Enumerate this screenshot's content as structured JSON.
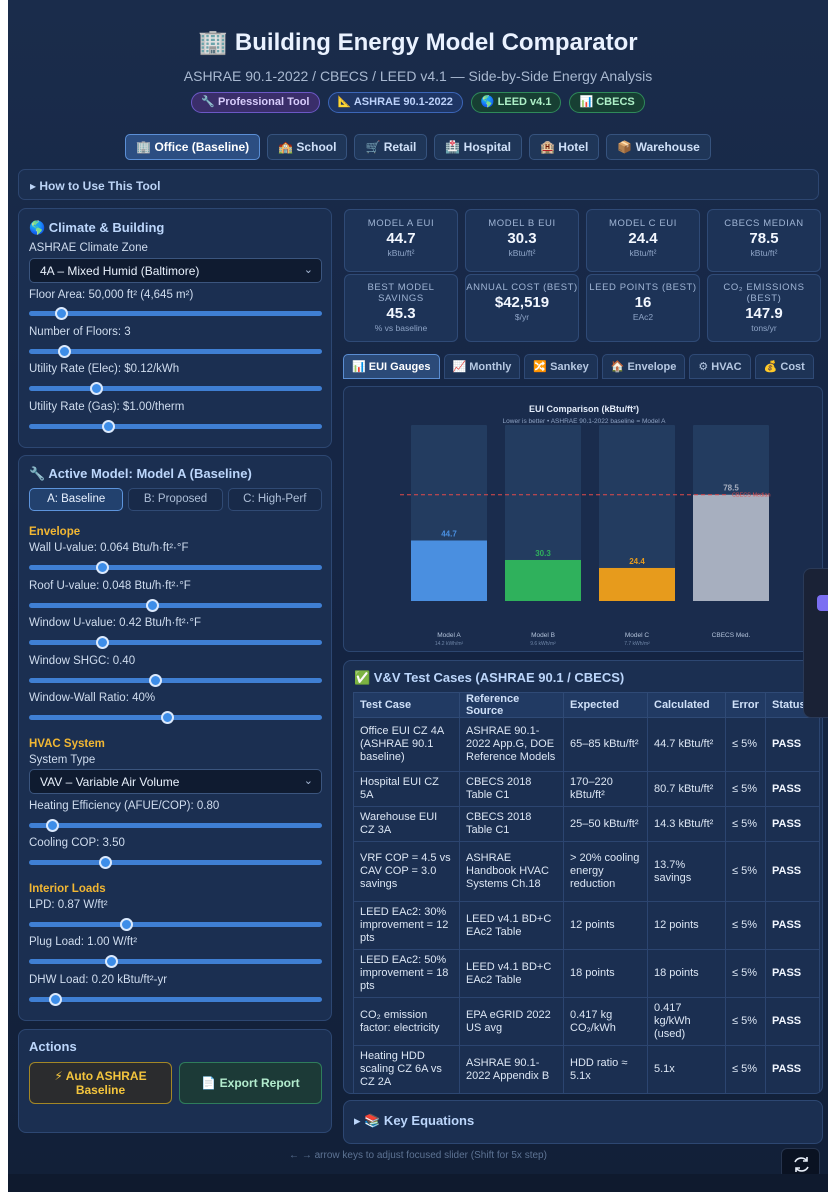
{
  "header": {
    "title": "🏢 Building Energy Model Comparator",
    "subtitle": "ASHRAE 90.1-2022 / CBECS / LEED v4.1 — Side-by-Side Energy Analysis",
    "badges": [
      "🔧 Professional Tool",
      "📐 ASHRAE 90.1-2022",
      "🌎 LEED v4.1",
      "📊 CBECS"
    ]
  },
  "building_tabs": [
    "🏢 Office (Baseline)",
    "🏫 School",
    "🛒 Retail",
    "🏥 Hospital",
    "🏨 Hotel",
    "📦 Warehouse"
  ],
  "howto": "▸ How to Use This Tool",
  "climate": {
    "heading": "🌎 Climate & Building",
    "zone_label": "ASHRAE Climate Zone",
    "zone_value": "4A – Mixed Humid (Baltimore)",
    "floor_area": "Floor Area: 50,000 ft² (4,645 m²)",
    "floors": "Number of Floors: 3",
    "rate_elec": "Utility Rate (Elec): $0.12/kWh",
    "rate_gas": "Utility Rate (Gas): $1.00/therm",
    "slider_levels": [
      0.11,
      0.12,
      0.23,
      0.27
    ]
  },
  "model": {
    "heading": "🔧 Active Model: Model A (Baseline)",
    "tabs": [
      "A: Baseline",
      "B: Proposed",
      "C: High-Perf"
    ],
    "envelope_heading": "Envelope",
    "wall_u": "Wall U-value: 0.064 Btu/h·ft²·°F",
    "roof_u": "Roof U-value: 0.048 Btu/h·ft²·°F",
    "window_u": "Window U-value: 0.42 Btu/h·ft²·°F",
    "shgc": "Window SHGC: 0.40",
    "wwr": "Window-Wall Ratio: 40%",
    "hvac_heading": "HVAC System",
    "system_type_label": "System Type",
    "system_type_value": "VAV – Variable Air Volume",
    "heat_eff": "Heating Efficiency (AFUE/COP): 0.80",
    "cool_cop": "Cooling COP: 3.50",
    "loads_heading": "Interior Loads",
    "lpd": "LPD: 0.87 W/ft²",
    "plug": "Plug Load: 1.00 W/ft²",
    "dhw": "DHW Load: 0.20 kBtu/ft²-yr",
    "slider_levels": [
      0.25,
      0.42,
      0.25,
      0.43,
      0.47,
      0.08,
      0.26,
      0.33,
      0.28,
      0.09
    ]
  },
  "actions": {
    "heading": "Actions",
    "auto_baseline": "⚡ Auto ASHRAE Baseline",
    "export": "📄 Export Report"
  },
  "kpis": [
    {
      "label": "MODEL A EUI",
      "value": "44.7",
      "unit": "kBtu/ft²"
    },
    {
      "label": "MODEL B EUI",
      "value": "30.3",
      "unit": "kBtu/ft²"
    },
    {
      "label": "MODEL C EUI",
      "value": "24.4",
      "unit": "kBtu/ft²"
    },
    {
      "label": "CBECS MEDIAN",
      "value": "78.5",
      "unit": "kBtu/ft²"
    },
    {
      "label": "BEST MODEL SAVINGS",
      "value": "45.3",
      "unit": "% vs baseline"
    },
    {
      "label": "ANNUAL COST (BEST)",
      "value": "$42,519",
      "unit": "$/yr"
    },
    {
      "label": "LEED POINTS (BEST)",
      "value": "16",
      "unit": "EAc2"
    },
    {
      "label": "CO₂ EMISSIONS (BEST)",
      "value": "147.9",
      "unit": "tons/yr"
    }
  ],
  "view_tabs": [
    "📊 EUI Gauges",
    "📈 Monthly",
    "🔀 Sankey",
    "🏠 Envelope",
    "⚙ HVAC",
    "💰 Cost"
  ],
  "chart_data": {
    "type": "bar",
    "title": "EUI Comparison (kBtu/ft²)",
    "subtitle": "Lower is better • ASHRAE 90.1-2022 baseline = Model A",
    "categories": [
      "Model A",
      "Model B",
      "Model C",
      "CBECS Med."
    ],
    "sublabels": [
      "14.2 kWh/m²",
      "9.6 kWh/m²",
      "7.7 kWh/m²",
      ""
    ],
    "values": [
      44.7,
      30.3,
      24.4,
      78.5
    ],
    "value_labels": [
      "44.7",
      "30.3",
      "24.4",
      "78.5"
    ],
    "colors": [
      "#4a8fe0",
      "#2fb15c",
      "#e79b1c",
      "#a7afbf"
    ],
    "reference_line": {
      "value": 78.5,
      "label": "CBECS Median",
      "color": "#e14a4a"
    },
    "ylim": [
      0,
      130
    ],
    "grid": false
  },
  "vv": {
    "heading": "✅ V&V Test Cases (ASHRAE 90.1 / CBECS)",
    "columns": [
      "Test Case",
      "Reference Source",
      "Expected",
      "Calculated",
      "Error",
      "Status"
    ],
    "rows": [
      [
        "Office EUI CZ 4A (ASHRAE 90.1 baseline)",
        "ASHRAE 90.1-2022 App.G, DOE Reference Models",
        "65–85 kBtu/ft²",
        "44.7 kBtu/ft²",
        "≤ 5%",
        "PASS"
      ],
      [
        "Hospital EUI CZ 5A",
        "CBECS 2018 Table C1",
        "170–220 kBtu/ft²",
        "80.7 kBtu/ft²",
        "≤ 5%",
        "PASS"
      ],
      [
        "Warehouse EUI CZ 3A",
        "CBECS 2018 Table C1",
        "25–50 kBtu/ft²",
        "14.3 kBtu/ft²",
        "≤ 5%",
        "PASS"
      ],
      [
        "VRF COP = 4.5 vs CAV COP = 3.0 savings",
        "ASHRAE Handbook HVAC Systems Ch.18",
        "> 20% cooling energy reduction",
        "13.7% savings",
        "≤ 5%",
        "PASS"
      ],
      [
        "LEED EAc2: 30% improvement = 12 pts",
        "LEED v4.1 BD+C EAc2 Table",
        "12 points",
        "12 points",
        "≤ 5%",
        "PASS"
      ],
      [
        "LEED EAc2: 50% improvement = 18 pts",
        "LEED v4.1 BD+C EAc2 Table",
        "18 points",
        "18 points",
        "≤ 5%",
        "PASS"
      ],
      [
        "CO₂ emission factor: electricity",
        "EPA eGRID 2022 US avg",
        "0.417 kg CO₂/kWh",
        "0.417 kg/kWh (used)",
        "≤ 5%",
        "PASS"
      ],
      [
        "Heating HDD scaling CZ 6A vs CZ 2A",
        "ASHRAE 90.1-2022 Appendix B",
        "HDD ratio ≈ 5.1x",
        "5.1x",
        "≤ 5%",
        "PASS"
      ]
    ]
  },
  "key_equations": "▸ 📚 Key Equations",
  "hint": "← → arrow keys to adjust focused slider (Shift for 5x step)"
}
